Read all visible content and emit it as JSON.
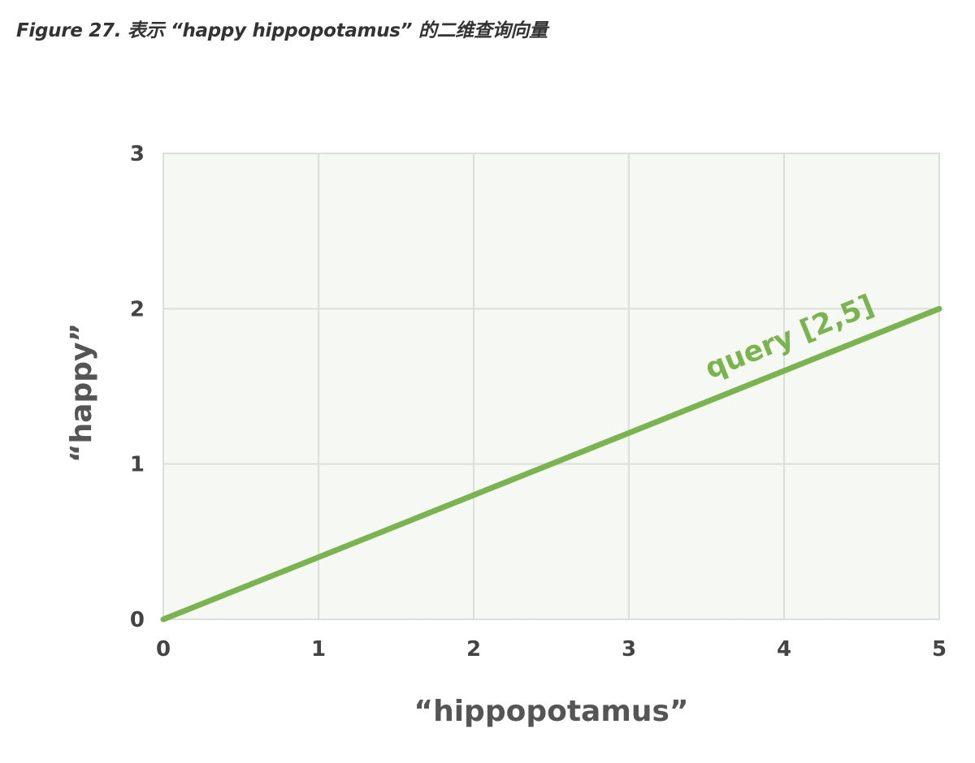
{
  "caption": "Figure 27. 表示 “happy hippopotamus” 的二维查询向量",
  "chart_data": {
    "type": "line",
    "title": "",
    "xlabel": "“hippopotamus”",
    "ylabel": "“happy”",
    "xlim": [
      0,
      5
    ],
    "ylim": [
      0,
      3
    ],
    "xticks": [
      "0",
      "1",
      "2",
      "3",
      "4",
      "5"
    ],
    "yticks": [
      "0",
      "1",
      "2",
      "3"
    ],
    "grid": true,
    "colors": {
      "line": "#7ab44f",
      "plot_bg": "#f6f8f3",
      "grid": "#dcdfd9"
    },
    "series": [
      {
        "label": "query [2,5]",
        "x": [
          0,
          5
        ],
        "y": [
          0,
          2
        ]
      }
    ]
  }
}
